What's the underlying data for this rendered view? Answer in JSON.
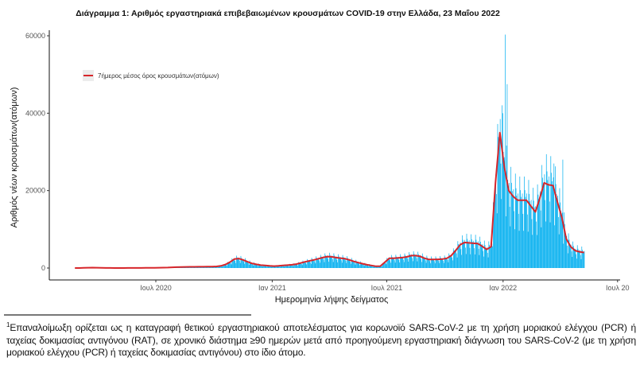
{
  "chart_data": {
    "type": "bar",
    "title": "Διάγραμμα 1: Αριθμός εργαστηριακά επιβεβαιωμένων κρουσμάτων COVID-19 στην Ελλάδα, 23 Μαΐου 2022",
    "xlabel": "Ημερομηνία λήψης δείγματος",
    "ylabel": "Αριθμός νέων κρουσμάτων(ατόμων)",
    "ylim": [
      0,
      60000
    ],
    "yticks": [
      0,
      20000,
      40000,
      60000
    ],
    "xticks": [
      {
        "label": "Ιουλ 2020",
        "date": "2020-07-01"
      },
      {
        "label": "Ιαν 2021",
        "date": "2021-01-01"
      },
      {
        "label": "Ιουλ 2021",
        "date": "2021-07-01"
      },
      {
        "label": "Ιαν 2022",
        "date": "2022-01-01"
      },
      {
        "label": "Ιουλ 20",
        "date": "2022-07-01"
      }
    ],
    "xlim": [
      "2020-01-15",
      "2022-07-01"
    ],
    "grid": false,
    "legend": {
      "position": "top-left",
      "entries": [
        {
          "label": "7ήμερος μέσος όρος κρουσμάτων(ατόμων)",
          "color": "#D7262B"
        }
      ]
    },
    "series": [
      {
        "name": "7ήμερος μέσος όρος κρουσμάτων(ατόμων)",
        "kind": "line",
        "color": "#D7262B",
        "start_date": "2020-02-24",
        "step_days": 7,
        "values": [
          0,
          10,
          50,
          80,
          100,
          90,
          60,
          30,
          15,
          10,
          10,
          10,
          15,
          20,
          25,
          30,
          40,
          50,
          60,
          80,
          100,
          130,
          180,
          220,
          250,
          280,
          300,
          300,
          320,
          330,
          350,
          380,
          420,
          550,
          900,
          1500,
          2300,
          2450,
          2100,
          1600,
          1200,
          950,
          750,
          650,
          550,
          500,
          550,
          650,
          750,
          850,
          1000,
          1300,
          1600,
          1850,
          2100,
          2400,
          2700,
          2950,
          2900,
          2700,
          2550,
          2400,
          2100,
          1700,
          1400,
          1100,
          850,
          650,
          450,
          500,
          1500,
          2500,
          2500,
          2600,
          2700,
          2900,
          3200,
          3200,
          3000,
          2500,
          2200,
          2200,
          2250,
          2300,
          2500,
          3200,
          4500,
          6000,
          6600,
          6500,
          6400,
          6300,
          5600,
          4800,
          5500,
          22000,
          35000,
          26000,
          20000,
          18500,
          17500,
          17500,
          17500,
          16000,
          14500,
          18000,
          22000,
          21500,
          21300,
          17000,
          13000,
          7500,
          5500,
          4500,
          4200,
          4000
        ]
      },
      {
        "name": "Ημερήσια κρούσματα",
        "kind": "bar",
        "color": "#00AEEF",
        "daily_pattern": [
          0.55,
          1.35,
          1.15,
          1.05,
          1.0,
          1.1,
          0.8
        ],
        "peaks": [
          {
            "date": "2022-01-04",
            "value": 60300
          },
          {
            "date": "2022-01-07",
            "value": 47500
          },
          {
            "date": "2021-12-31",
            "value": 40000
          },
          {
            "date": "2022-03-22",
            "value": 27000
          },
          {
            "date": "2022-04-05",
            "value": 28000
          }
        ]
      }
    ]
  },
  "footnote": {
    "marker": "1",
    "text": "Επαναλοίμωξη ορίζεται ως η καταγραφή θετικού εργαστηριακού αποτελέσματος για κορωνοϊό SARS-CoV-2 με τη χρήση μοριακού ελέγχου (PCR) ή ταχείας δοκιμασίας αντιγόνου (RAT), σε χρονικό διάστημα ≥90 ημερών μετά από προηγούμενη εργαστηριακή διάγνωση του SARS-CoV-2 (με τη χρήση μοριακού ελέγχου (PCR) ή ταχείας δοκιμασίας αντιγόνου) στο ίδιο άτομο."
  }
}
